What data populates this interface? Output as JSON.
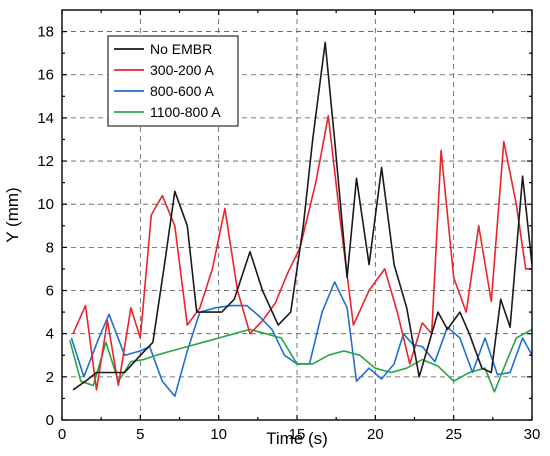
{
  "chart_data": {
    "type": "line",
    "title": "",
    "xlabel": "Time (s)",
    "ylabel": "Y (mm)",
    "xlim": [
      0,
      30
    ],
    "ylim": [
      0,
      19
    ],
    "xticks": [
      0,
      5,
      10,
      15,
      20,
      25,
      30
    ],
    "yticks": [
      0,
      2,
      4,
      6,
      8,
      10,
      12,
      14,
      16,
      18
    ],
    "grid": true,
    "legend_position": "top-left",
    "series": [
      {
        "name": "No EMBR",
        "color": "#1a1a1a",
        "x": [
          0.7,
          1.5,
          2.2,
          3.2,
          4.0,
          5.0,
          5.8,
          6.6,
          7.2,
          8.0,
          8.6,
          9.4,
          10.2,
          11.0,
          12.0,
          12.8,
          13.8,
          14.6,
          15.4,
          16.0,
          16.8,
          17.4,
          18.2,
          18.8,
          19.6,
          20.4,
          21.2,
          22.0,
          22.8,
          23.4,
          24.0,
          24.6,
          25.4,
          26.0,
          26.8,
          27.4,
          28.0,
          28.6,
          29.4,
          30.0
        ],
        "y": [
          1.4,
          1.8,
          2.2,
          2.2,
          2.2,
          3.0,
          3.6,
          7.5,
          10.6,
          9.0,
          5.0,
          5.0,
          5.0,
          5.6,
          7.8,
          6.0,
          4.4,
          5.0,
          9.0,
          13.0,
          17.5,
          13.0,
          6.6,
          11.2,
          7.2,
          11.7,
          7.2,
          5.2,
          2.0,
          3.5,
          5.0,
          4.2,
          5.0,
          4.0,
          2.4,
          2.2,
          5.6,
          4.3,
          11.3,
          7.2
        ]
      },
      {
        "name": "300-200 A",
        "color": "#e8262a",
        "x": [
          0.7,
          1.5,
          2.2,
          2.9,
          3.6,
          4.4,
          5.0,
          5.7,
          6.4,
          7.2,
          8.0,
          8.8,
          9.6,
          10.4,
          11.2,
          12.0,
          12.8,
          13.6,
          14.4,
          15.2,
          16.2,
          17.0,
          17.8,
          18.6,
          19.6,
          20.6,
          21.4,
          22.2,
          23.0,
          23.6,
          24.2,
          25.0,
          25.8,
          26.6,
          27.4,
          28.2,
          29.0,
          29.6,
          30.0
        ],
        "y": [
          4.0,
          5.3,
          1.4,
          4.6,
          1.6,
          5.2,
          3.8,
          9.5,
          10.4,
          9.0,
          4.4,
          5.2,
          7.0,
          9.8,
          6.0,
          4.0,
          4.6,
          5.4,
          6.8,
          8.0,
          11.0,
          14.1,
          9.0,
          4.4,
          6.0,
          7.0,
          5.0,
          2.6,
          4.5,
          4.0,
          12.5,
          6.6,
          5.0,
          9.0,
          5.5,
          12.9,
          10.0,
          7.0,
          7.0
        ]
      },
      {
        "name": "800-600 A",
        "color": "#1f6fd4",
        "x": [
          0.6,
          1.4,
          2.3,
          3.0,
          4.0,
          5.0,
          5.6,
          6.4,
          7.2,
          8.0,
          8.8,
          9.8,
          10.8,
          11.8,
          12.6,
          13.4,
          14.2,
          15.0,
          15.8,
          16.6,
          17.4,
          18.2,
          18.8,
          19.6,
          20.4,
          21.2,
          21.8,
          22.4,
          23.0,
          23.8,
          24.6,
          25.4,
          26.2,
          27.0,
          27.8,
          28.6,
          29.4,
          30.0
        ],
        "y": [
          3.8,
          2.0,
          3.7,
          4.9,
          3.0,
          3.2,
          3.4,
          1.8,
          1.1,
          3.2,
          5.0,
          5.2,
          5.3,
          5.3,
          4.8,
          4.2,
          3.0,
          2.6,
          2.6,
          5.0,
          6.4,
          5.2,
          1.8,
          2.4,
          1.9,
          2.6,
          4.0,
          3.5,
          3.4,
          2.7,
          4.3,
          3.8,
          2.2,
          3.8,
          2.1,
          2.2,
          3.8,
          3.0
        ]
      },
      {
        "name": "1100-800 A",
        "color": "#27a545",
        "x": [
          0.5,
          1.2,
          2.0,
          2.8,
          3.6,
          4.4,
          5.2,
          6.0,
          7.0,
          8.0,
          9.0,
          10.0,
          11.0,
          12.0,
          13.0,
          14.0,
          15.0,
          16.0,
          17.0,
          18.0,
          19.0,
          20.0,
          21.0,
          22.0,
          23.0,
          24.0,
          25.0,
          26.0,
          27.0,
          27.6,
          28.2,
          29.0,
          30.0
        ],
        "y": [
          3.7,
          1.8,
          1.6,
          3.6,
          1.8,
          2.7,
          2.8,
          3.0,
          3.2,
          3.4,
          3.6,
          3.8,
          4.0,
          4.2,
          4.0,
          3.8,
          2.6,
          2.6,
          3.0,
          3.2,
          3.0,
          2.4,
          2.2,
          2.4,
          2.8,
          2.5,
          1.8,
          2.2,
          2.4,
          1.3,
          2.4,
          3.8,
          4.2
        ]
      }
    ]
  }
}
